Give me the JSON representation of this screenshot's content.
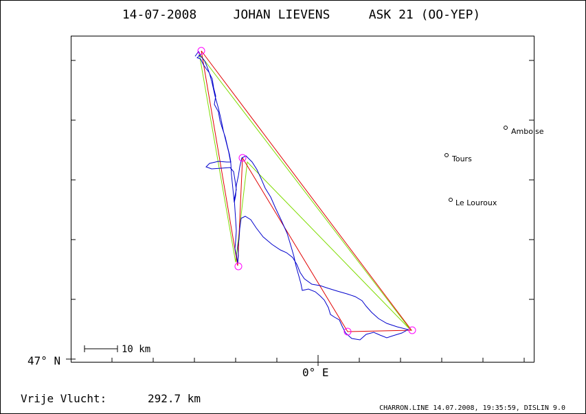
{
  "title": {
    "date": "14-07-2008",
    "pilot": "JOHAN LIEVENS",
    "glider": "ASK 21 (OO-YEP)"
  },
  "axes": {
    "lat_label": "47° N",
    "lon_label": "0° E"
  },
  "scale_bar": {
    "label": "10 km"
  },
  "places": [
    {
      "name": "Amboise"
    },
    {
      "name": "Tours"
    },
    {
      "name": "Le Louroux"
    }
  ],
  "summary": {
    "label": "Vrije Vlucht:",
    "distance": "292.7 km"
  },
  "footer": "CHARRON.LINE 14.07.2008, 19:35:59, DISLIN 9.0",
  "colors": {
    "track": "#0000cc",
    "optimised_legs": "#e00000",
    "declared_legs": "#7fdc00",
    "turnpoints": "#ff00ff"
  }
}
